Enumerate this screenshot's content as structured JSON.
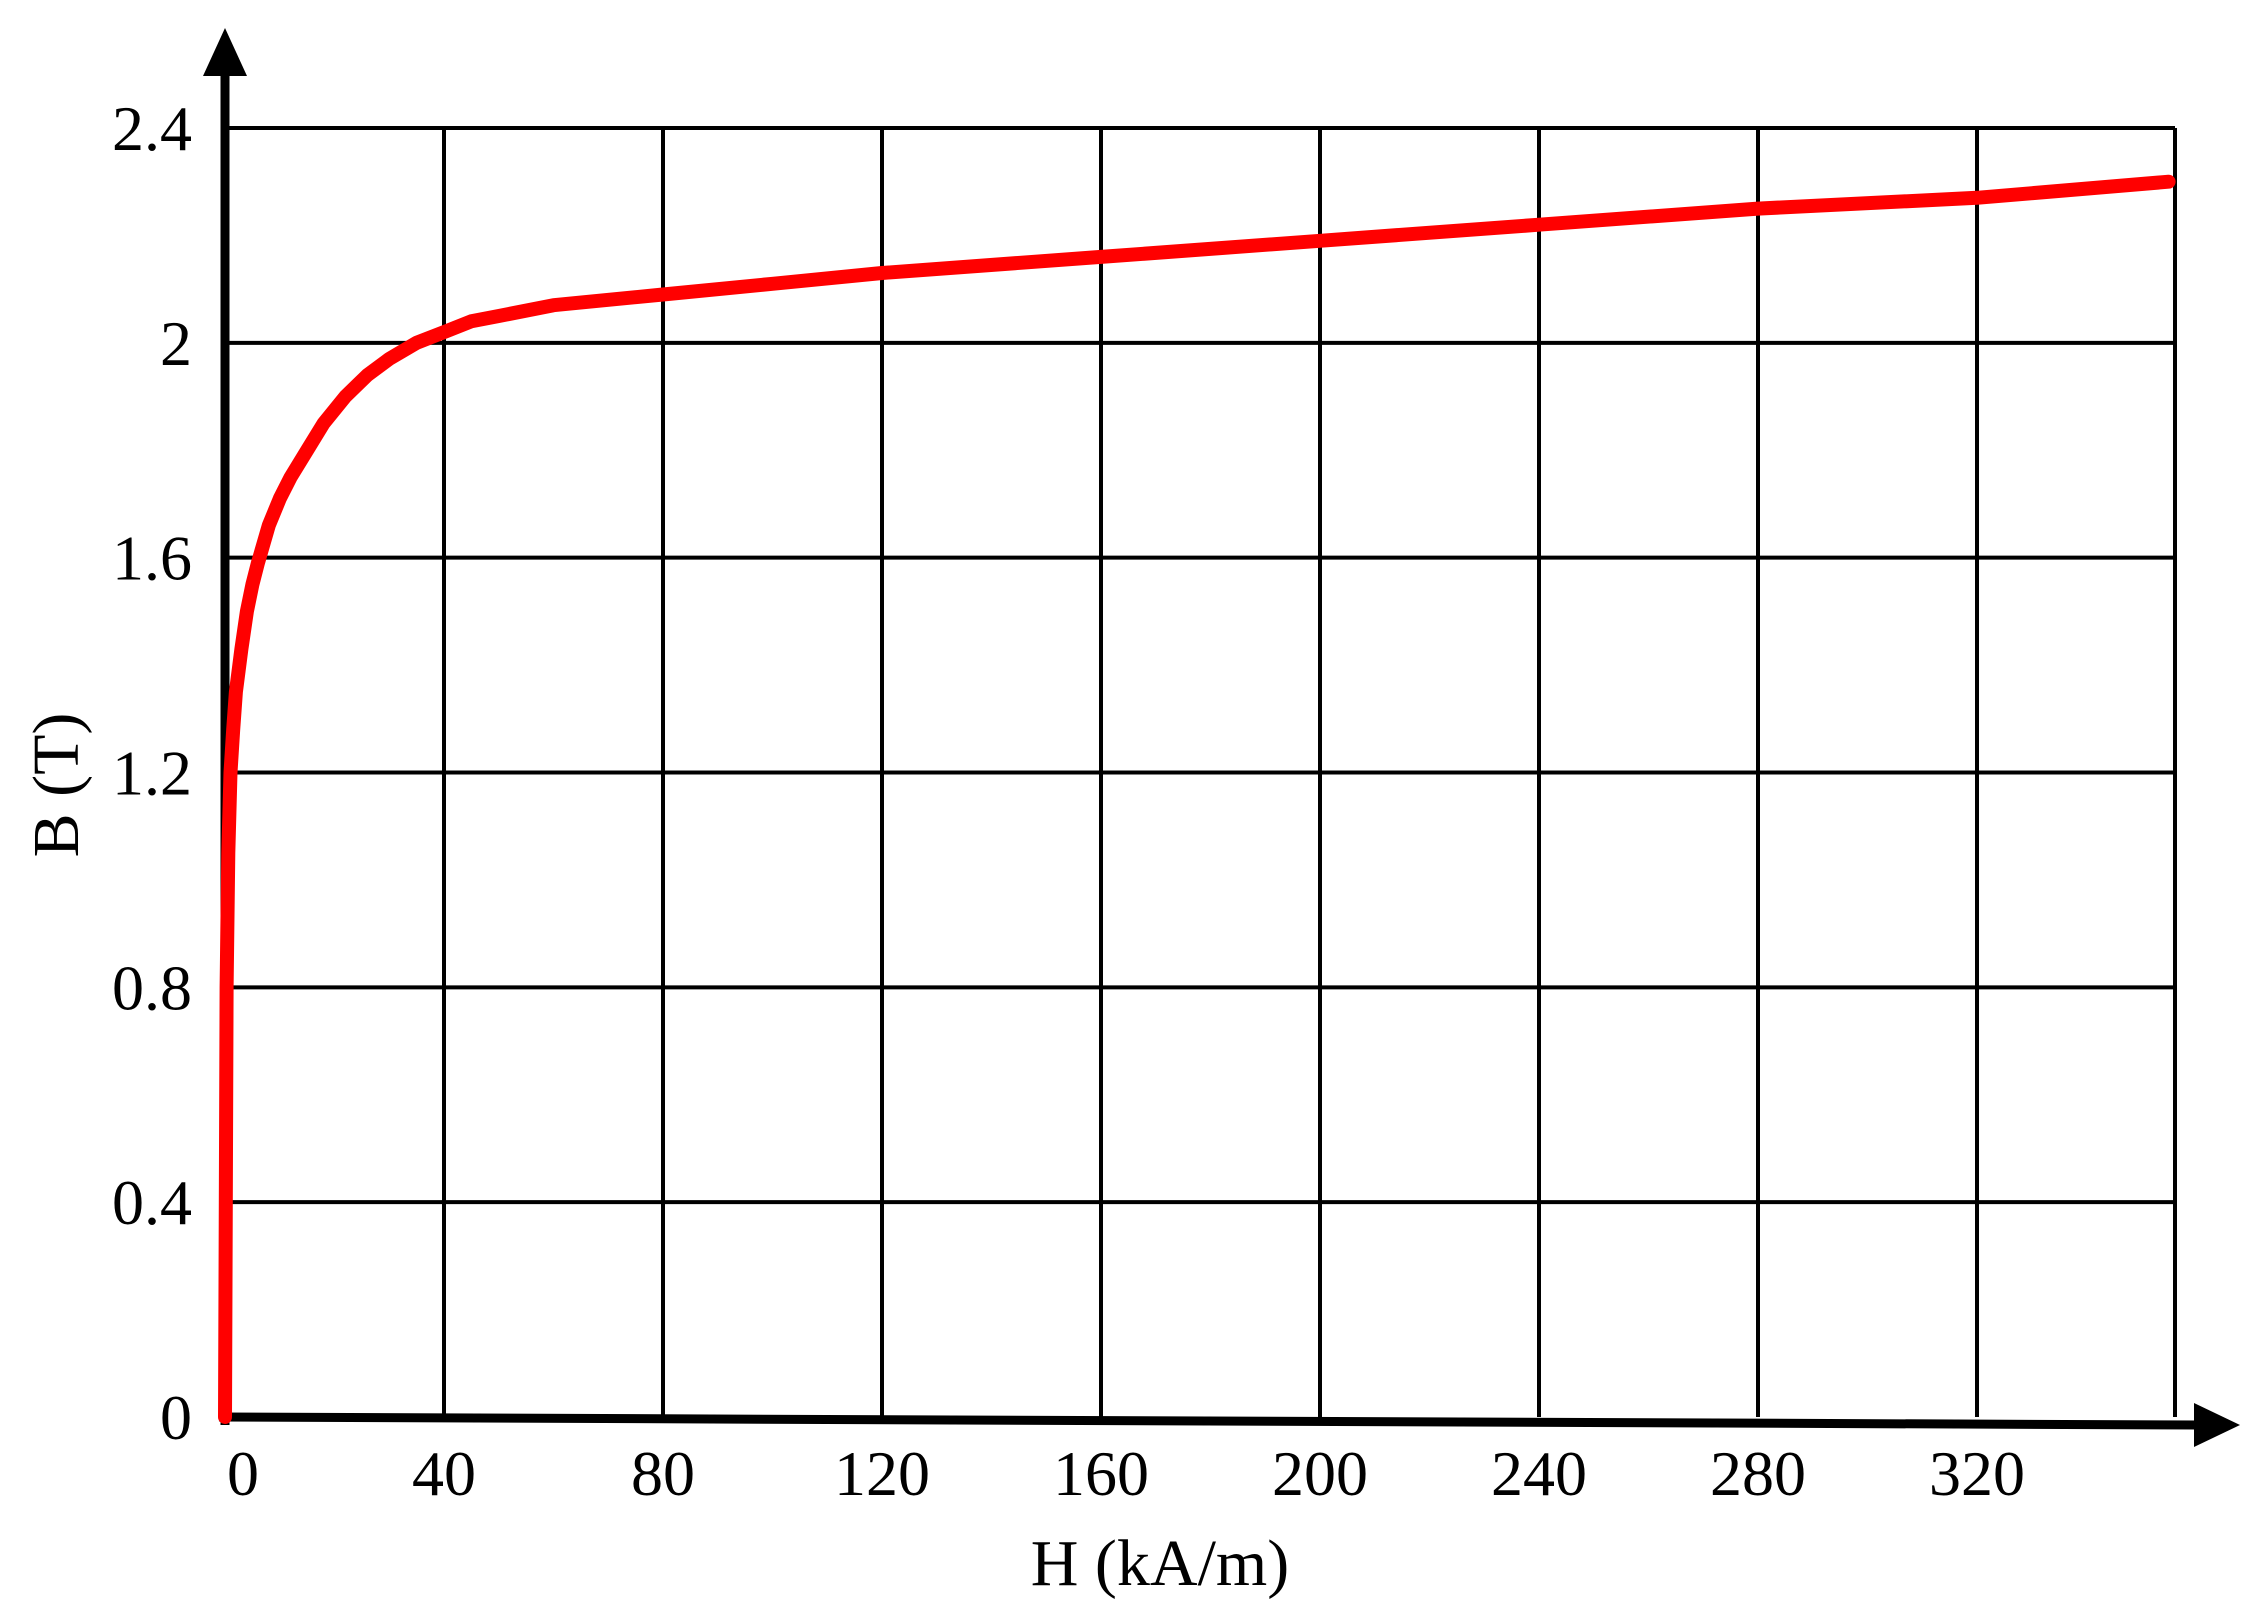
{
  "chart_data": {
    "type": "line",
    "xlabel": "H (kA/m)",
    "ylabel": "B (T)",
    "xlim": [
      0,
      360
    ],
    "ylim": [
      0,
      2.4
    ],
    "x_ticks": [
      0,
      40,
      80,
      120,
      160,
      200,
      240,
      280,
      320
    ],
    "x_tick_labels": [
      "0",
      "40",
      "80",
      "120",
      "160",
      "200",
      "240",
      "280",
      "320"
    ],
    "y_ticks": [
      0,
      0.4,
      0.8,
      1.2,
      1.6,
      2.0,
      2.4
    ],
    "y_tick_labels": [
      "0",
      "0.4",
      "0.8",
      "1.2",
      "1.6",
      "2",
      "2.4"
    ],
    "grid": true,
    "series": [
      {
        "color": "#ff0000",
        "x": [
          0,
          0.3,
          0.6,
          1,
          1.5,
          2,
          3,
          4,
          5,
          6,
          8,
          10,
          12,
          15,
          18,
          22,
          26,
          30,
          35,
          40,
          45,
          50,
          60,
          80,
          100,
          120,
          160,
          200,
          240,
          280,
          320,
          355
        ],
        "y": [
          0,
          0.8,
          1.05,
          1.2,
          1.28,
          1.35,
          1.43,
          1.5,
          1.55,
          1.59,
          1.66,
          1.71,
          1.75,
          1.8,
          1.85,
          1.9,
          1.94,
          1.97,
          2.0,
          2.02,
          2.04,
          2.05,
          2.07,
          2.09,
          2.11,
          2.13,
          2.16,
          2.19,
          2.22,
          2.25,
          2.27,
          2.3
        ]
      }
    ]
  }
}
